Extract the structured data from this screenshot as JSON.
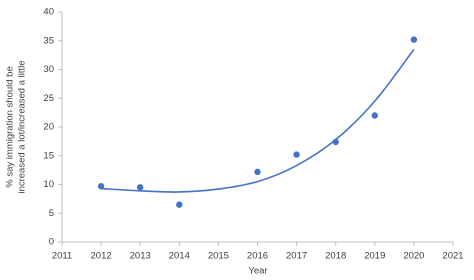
{
  "chart_data": {
    "type": "scatter",
    "x_label": "Year",
    "y_label": [
      "% say immigration should be",
      "increased a lot/increased a little"
    ],
    "x": [
      2012,
      2013,
      2014,
      2016,
      2017,
      2018,
      2019,
      2020
    ],
    "values": [
      9.7,
      9.5,
      6.5,
      12.2,
      15.2,
      17.4,
      22,
      35.2
    ],
    "color": "#4472c4",
    "trendline": {
      "color": "#4472c4",
      "x": [
        2012,
        2013,
        2014,
        2015,
        2016,
        2017,
        2018,
        2019,
        2020
      ],
      "values": [
        9.3,
        8.9,
        8.7,
        9.2,
        10.5,
        13.3,
        17.8,
        24.5,
        33.5
      ]
    },
    "xlim": [
      2011,
      2021
    ],
    "xticks": [
      2011,
      2012,
      2013,
      2014,
      2015,
      2016,
      2017,
      2018,
      2019,
      2020,
      2021
    ],
    "ylim": [
      0,
      40
    ],
    "yticks": [
      0,
      5,
      10,
      15,
      20,
      25,
      30,
      35,
      40
    ],
    "grid": false
  }
}
